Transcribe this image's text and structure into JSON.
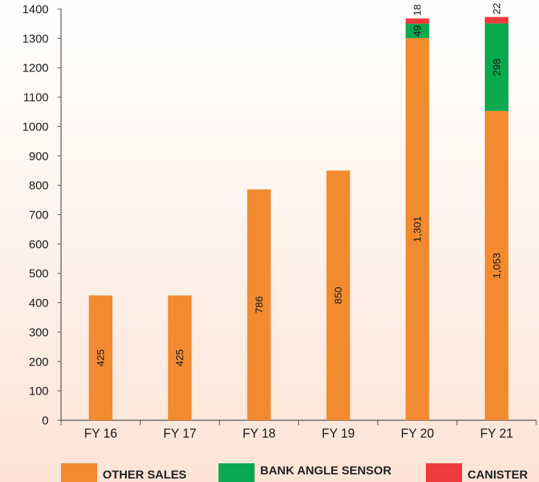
{
  "chart_data": {
    "type": "bar",
    "stacked": true,
    "categories": [
      "FY 16",
      "FY 17",
      "FY 18",
      "FY 19",
      "FY 20",
      "FY 21"
    ],
    "series": [
      {
        "name": "OTHER SALES",
        "color": "#F28A30",
        "values": [
          425,
          425,
          786,
          850,
          1301,
          1053
        ],
        "labels": [
          "425",
          "425",
          "786",
          "850",
          "1,301",
          "1,053"
        ]
      },
      {
        "name": "BANK ANGLE SENSOR",
        "color": "#0AA84F",
        "values": [
          0,
          0,
          0,
          0,
          49,
          298
        ],
        "labels": [
          "",
          "",
          "",
          "",
          "49",
          "298"
        ]
      },
      {
        "name": "CANISTER",
        "color": "#EE3A3A",
        "values": [
          0,
          0,
          0,
          0,
          18,
          22
        ],
        "labels": [
          "",
          "",
          "",
          "",
          "18",
          "22"
        ]
      }
    ],
    "ylim": [
      0,
      1400
    ],
    "yticks": [
      0,
      100,
      200,
      300,
      400,
      500,
      600,
      700,
      800,
      900,
      1000,
      1100,
      1200,
      1300,
      1400
    ],
    "legend_position": "bottom",
    "grid": false
  }
}
